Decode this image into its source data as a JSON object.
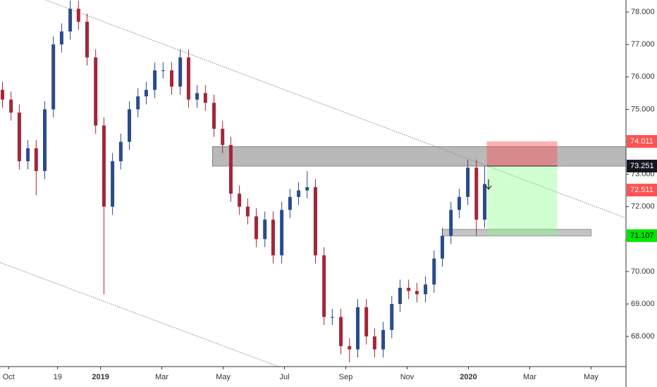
{
  "chart_data": {
    "type": "candlestick",
    "x": [
      -0.2,
      0.08,
      0.35,
      0.63,
      0.9,
      1.18,
      1.46,
      1.73,
      2.01,
      2.28,
      2.56,
      2.84,
      3.11,
      3.39,
      3.66,
      3.94,
      4.22,
      4.49,
      4.77,
      5.04,
      5.32,
      5.6,
      5.87,
      6.15,
      6.42,
      6.7,
      6.98,
      7.25,
      7.53,
      7.8,
      8.08,
      8.36,
      8.63,
      8.91,
      9.18,
      9.46,
      9.74,
      10.01,
      10.29,
      10.56,
      10.84,
      11.12,
      11.39,
      11.67,
      11.94,
      12.22,
      12.5,
      12.77,
      13.05,
      13.32,
      13.6,
      13.88,
      14.15,
      14.43,
      14.7,
      14.98,
      15.26,
      15.53
    ],
    "open": [
      75.6,
      75.3,
      74.9,
      73.4,
      73.8,
      73.1,
      75.0,
      77.0,
      77.4,
      78.1,
      77.7,
      76.6,
      74.5,
      72.0,
      73.4,
      74.0,
      75.0,
      75.4,
      75.6,
      76.2,
      76.2,
      75.7,
      76.6,
      75.3,
      75.5,
      75.2,
      74.4,
      73.9,
      72.4,
      72.0,
      71.7,
      71.0,
      71.6,
      70.5,
      71.9,
      72.3,
      72.5,
      72.6,
      70.5,
      68.6,
      68.6,
      67.7,
      67.6,
      68.9,
      68.0,
      67.6,
      68.2,
      69.0,
      69.5,
      69.4,
      69.3,
      69.6,
      70.4,
      71.1,
      71.9,
      72.3,
      73.2,
      71.6
    ],
    "high": [
      75.85,
      75.55,
      75.15,
      74.05,
      74.05,
      75.25,
      77.25,
      77.65,
      78.35,
      78.35,
      77.95,
      76.85,
      74.75,
      73.65,
      74.25,
      75.25,
      75.65,
      75.85,
      76.45,
      76.45,
      76.45,
      76.85,
      76.85,
      75.75,
      75.75,
      75.45,
      74.65,
      74.15,
      72.65,
      72.25,
      71.95,
      71.85,
      71.85,
      72.15,
      72.55,
      72.75,
      73.1,
      72.85,
      70.75,
      68.85,
      68.85,
      67.95,
      69.15,
      69.15,
      68.25,
      68.45,
      69.25,
      69.75,
      69.75,
      69.65,
      69.85,
      70.65,
      71.35,
      72.15,
      72.55,
      73.45,
      73.45,
      73.25
    ],
    "low": [
      75.05,
      74.65,
      73.15,
      73.15,
      72.35,
      72.85,
      74.75,
      76.75,
      77.15,
      77.45,
      76.35,
      74.25,
      69.3,
      71.75,
      73.15,
      73.75,
      74.75,
      75.15,
      75.35,
      75.95,
      75.45,
      75.45,
      75.05,
      75.05,
      74.95,
      74.15,
      73.65,
      72.15,
      71.75,
      71.45,
      70.75,
      70.75,
      70.25,
      70.25,
      71.65,
      72.05,
      72.25,
      70.25,
      68.35,
      68.35,
      67.45,
      67.2,
      67.35,
      67.75,
      67.35,
      67.35,
      67.95,
      68.75,
      69.15,
      69.05,
      69.05,
      69.35,
      70.15,
      70.85,
      71.65,
      72.05,
      71.1,
      71.35
    ],
    "close": [
      75.3,
      74.9,
      73.4,
      73.8,
      73.1,
      75.0,
      77.0,
      77.4,
      78.1,
      77.7,
      76.6,
      74.5,
      72.0,
      73.4,
      74.0,
      75.0,
      75.4,
      75.6,
      76.2,
      76.2,
      75.7,
      76.6,
      75.3,
      75.5,
      75.2,
      74.4,
      73.9,
      72.4,
      72.0,
      71.7,
      71.0,
      71.6,
      70.5,
      71.9,
      72.3,
      72.5,
      72.6,
      70.5,
      68.6,
      68.6,
      67.7,
      67.6,
      68.9,
      68.0,
      67.6,
      68.2,
      69.0,
      69.5,
      69.4,
      69.3,
      69.6,
      70.4,
      71.1,
      71.9,
      72.3,
      73.2,
      71.6,
      72.7
    ],
    "up_color": "#2a4b8d",
    "down_color": "#a3263a",
    "xlim": [
      -0.28,
      20.14
    ],
    "ylim": [
      67.07,
      78.37
    ],
    "xticks": [
      {
        "value": 0,
        "label": "Oct"
      },
      {
        "value": 1.6,
        "label": "19"
      },
      {
        "value": 3,
        "label": "2019"
      },
      {
        "value": 5,
        "label": "Mar"
      },
      {
        "value": 7,
        "label": "May"
      },
      {
        "value": 9,
        "label": "Jul"
      },
      {
        "value": 11,
        "label": "Sep"
      },
      {
        "value": 13,
        "label": "Nov"
      },
      {
        "value": 15,
        "label": "2020"
      },
      {
        "value": 17,
        "label": "Mar"
      },
      {
        "value": 19,
        "label": "May"
      }
    ],
    "yticks": [
      {
        "value": 68,
        "label": "68.000"
      },
      {
        "value": 69,
        "label": "69.000"
      },
      {
        "value": 70,
        "label": "70.000"
      },
      {
        "value": 71,
        "label": "71.000"
      },
      {
        "value": 72,
        "label": "72.000"
      },
      {
        "value": 73,
        "label": "73.000"
      },
      {
        "value": 74,
        "label": "74.000"
      },
      {
        "value": 75,
        "label": "75.000"
      },
      {
        "value": 76,
        "label": "76.000"
      },
      {
        "value": 77,
        "label": "77.000"
      },
      {
        "value": 78,
        "label": "78.000"
      }
    ],
    "zones": [
      {
        "from": 73.25,
        "to": 73.85,
        "x": [
          6.65,
          20.14
        ],
        "color": "#8a8a8a"
      },
      {
        "from": 71.1,
        "to": 71.3,
        "x": [
          14.15,
          19.0
        ],
        "color": "#9e9e9e"
      }
    ],
    "position": {
      "x": [
        15.6,
        17.9
      ],
      "stop": 74.011,
      "entry": 73.251,
      "target": 71.107
    },
    "price_markers": [
      {
        "value": 74.011,
        "color": "#ff5252"
      },
      {
        "value": 73.251,
        "color": "#131722"
      },
      {
        "value": 72.511,
        "color": "#ff5252"
      },
      {
        "value": 71.107,
        "color": "#00e600"
      }
    ]
  }
}
